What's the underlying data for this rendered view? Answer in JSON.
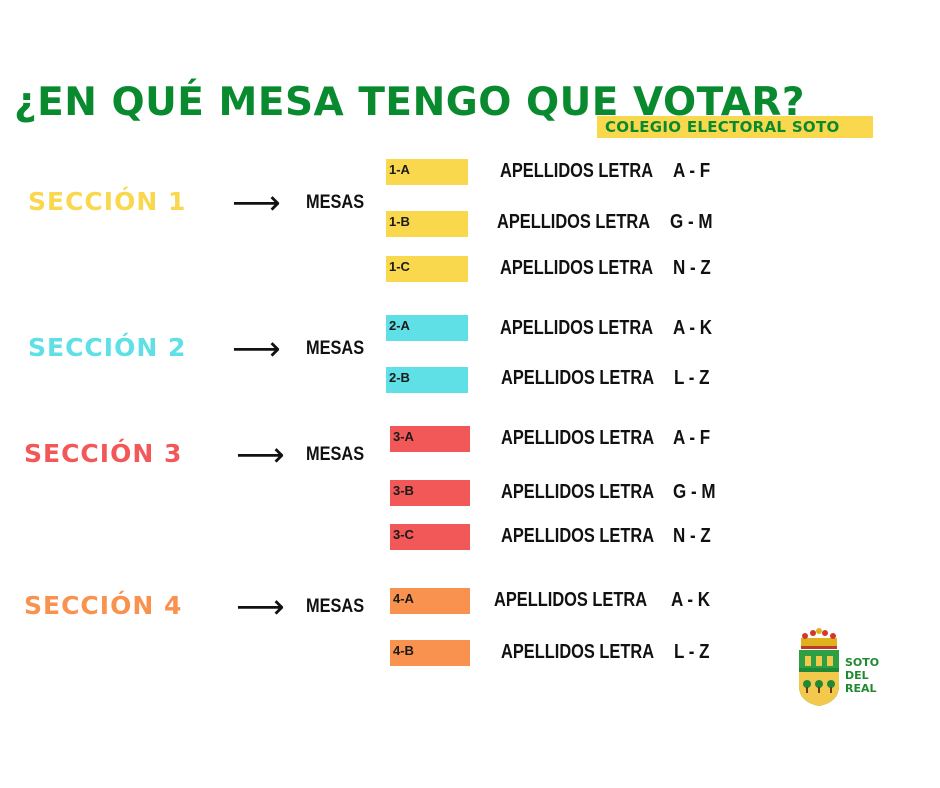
{
  "title": "¿EN QUÉ MESA TENGO QUE VOTAR?",
  "subtitle": "COLEGIO ELECTORAL SOTO",
  "colors": {
    "title_green": "#0a8a2f",
    "badge_yellow": "#f9d84e",
    "section1": "#f9d84e",
    "section2": "#5ee0e6",
    "section3": "#f25858",
    "section4": "#f9924e"
  },
  "mesas_label": "MESAS",
  "arrow_icon": "right-arrow-icon",
  "sections": [
    {
      "label": "SECCIÓN 1",
      "tables": [
        {
          "code": "1-A",
          "text": "APELLIDOS LETRA",
          "range": "A - F"
        },
        {
          "code": "1-B",
          "text": "APELLIDOS LETRA",
          "range": "G - M"
        },
        {
          "code": "1-C",
          "text": "APELLIDOS LETRA",
          "range": "N - Z"
        }
      ]
    },
    {
      "label": "SECCIÓN 2",
      "tables": [
        {
          "code": "2-A",
          "text": "APELLIDOS LETRA",
          "range": "A - K"
        },
        {
          "code": "2-B",
          "text": "APELLIDOS LETRA",
          "range": "L - Z"
        }
      ]
    },
    {
      "label": "SECCIÓN 3",
      "tables": [
        {
          "code": "3-A",
          "text": "APELLIDOS LETRA",
          "range": "A - F"
        },
        {
          "code": "3-B",
          "text": "APELLIDOS LETRA",
          "range": "G - M"
        },
        {
          "code": "3-C",
          "text": "APELLIDOS LETRA",
          "range": "N - Z"
        }
      ]
    },
    {
      "label": "SECCIÓN 4",
      "tables": [
        {
          "code": "4-A",
          "text": "APELLIDOS LETRA",
          "range": "A - K"
        },
        {
          "code": "4-B",
          "text": "APELLIDOS LETRA",
          "range": "L - Z"
        }
      ]
    }
  ],
  "logo": {
    "icon": "coat-of-arms-icon",
    "lines": [
      "SOTO",
      "DEL",
      "REAL"
    ]
  }
}
